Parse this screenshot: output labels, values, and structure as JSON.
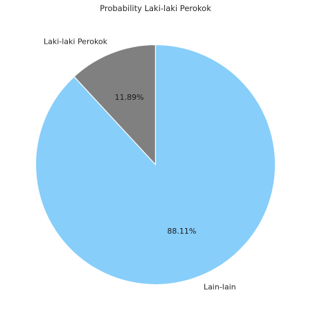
{
  "chart_data": {
    "type": "pie",
    "title": "Probability Laki-laki Perokok",
    "slices": [
      {
        "label": "Laki-laki Perokok",
        "value": 11.89,
        "pct_label": "11.89%",
        "color": "#808080"
      },
      {
        "label": "Lain-lain",
        "value": 88.11,
        "pct_label": "88.11%",
        "color": "#87cefa"
      }
    ],
    "start_angle_deg": 90,
    "direction": "counterclockwise",
    "edge_color": "#ffffff"
  }
}
